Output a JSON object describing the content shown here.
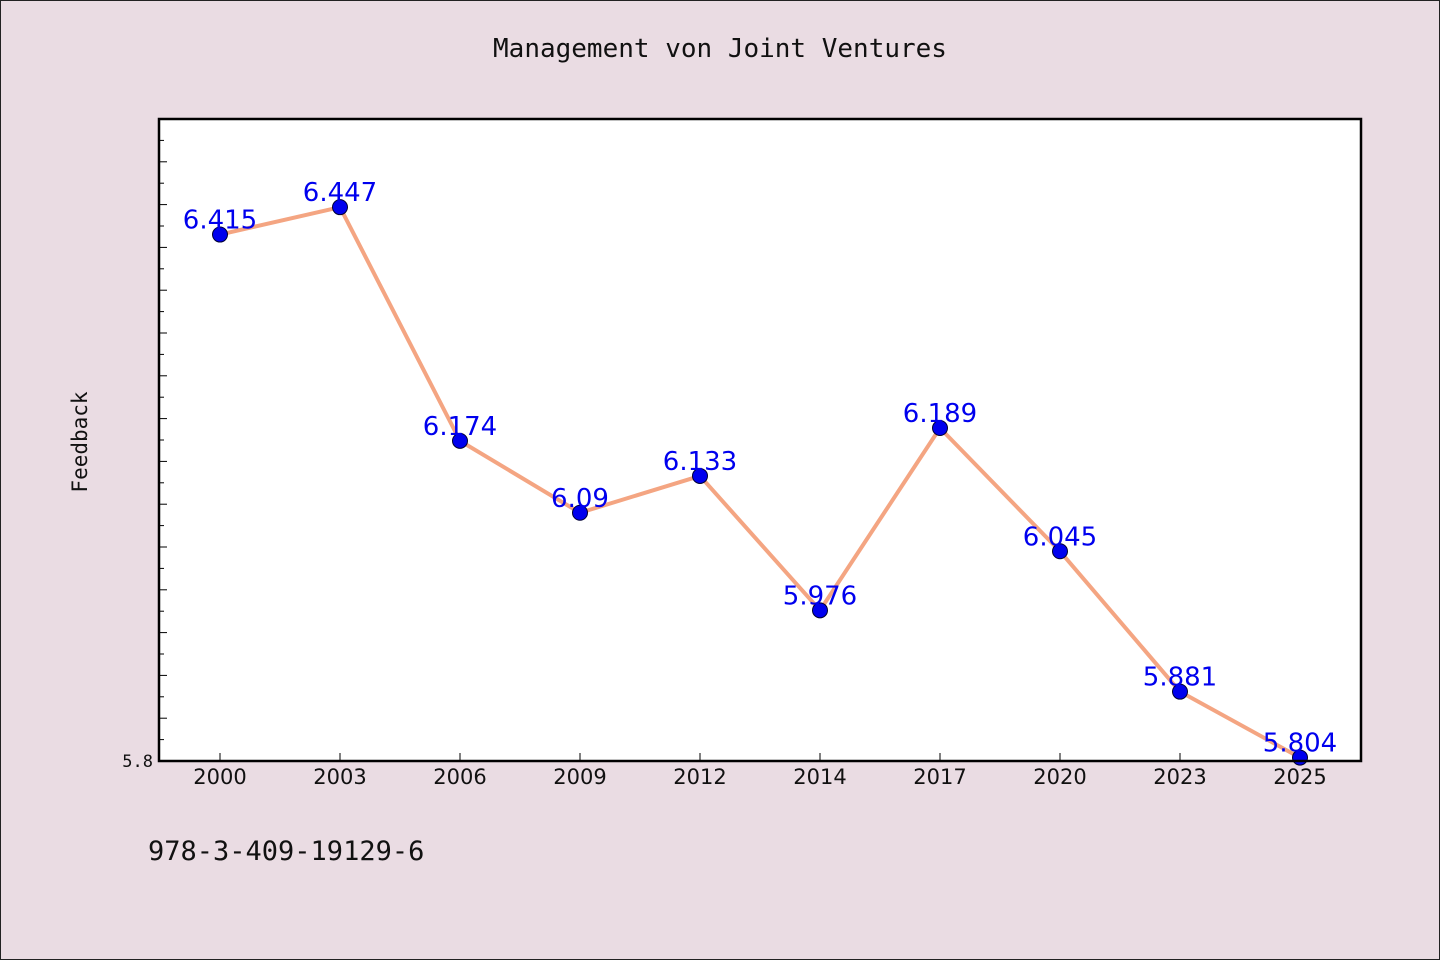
{
  "chart_data": {
    "type": "line",
    "title": "Management von Joint Ventures",
    "xlabel": "",
    "ylabel": "Feedback",
    "categories": [
      "2000",
      "2003",
      "2006",
      "2009",
      "2012",
      "2014",
      "2017",
      "2020",
      "2023",
      "2025"
    ],
    "series": [
      {
        "values": [
          6.415,
          6.447,
          6.174,
          6.09,
          6.133,
          5.976,
          6.189,
          6.045,
          5.881,
          5.804
        ]
      }
    ],
    "ylim": [
      5.8,
      6.55
    ],
    "ytick_labels": [
      "5.8"
    ],
    "data_labels": true,
    "grid": false,
    "colors": {
      "line": "#f4a582",
      "marker": "#0000ee",
      "marker_edge": "#000033",
      "data_label": "#0000ee",
      "plot_background": "#ffffff",
      "figure_background": "#eadce3"
    }
  },
  "footer_text": "978-3-409-19129-6"
}
